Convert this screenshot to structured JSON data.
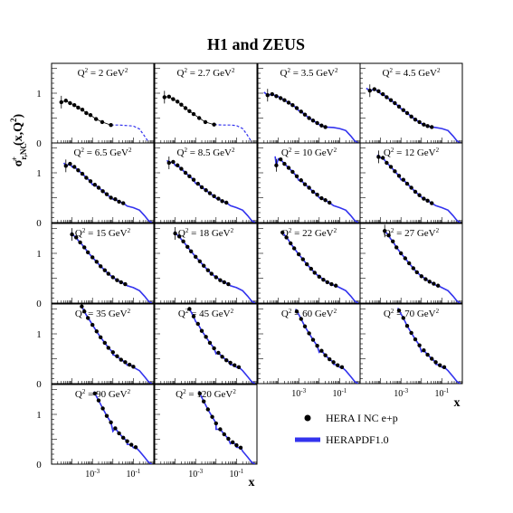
{
  "title": "H1 and ZEUS",
  "ylabel": "σ+r,NC(x,Q²)",
  "xlabel": "x",
  "legend": {
    "data_label": "HERA I NC e+p",
    "fit_label": "HERAPDF1.0",
    "fit_color": "#3333ee"
  },
  "chart_data": {
    "type": "scatter",
    "x_scale": "log",
    "xlim": [
      1e-05,
      1.0
    ],
    "ylim": [
      0,
      1.6
    ],
    "yticks": [
      0,
      1
    ],
    "xtick_labels": [
      "10-3",
      "10-1"
    ],
    "grid": false,
    "panels": [
      {
        "label": "Q² = 2 GeV²",
        "Q2": 2,
        "extrapolated_tail": true,
        "x": [
          3e-05,
          5e-05,
          8e-05,
          0.00013,
          0.0002,
          0.00032,
          0.0005,
          0.0008,
          0.0015,
          0.003,
          0.008
        ],
        "y": [
          0.82,
          0.85,
          0.8,
          0.76,
          0.71,
          0.67,
          0.6,
          0.56,
          0.48,
          0.42,
          0.36
        ],
        "fit_x": [
          0.008,
          0.02,
          0.05,
          0.1,
          0.2,
          0.35,
          0.55
        ],
        "fit_y": [
          0.36,
          0.36,
          0.35,
          0.34,
          0.28,
          0.14,
          0.02
        ]
      },
      {
        "label": "Q² = 2.7 GeV²",
        "Q2": 2.7,
        "extrapolated_tail": true,
        "x": [
          3e-05,
          5e-05,
          8e-05,
          0.00013,
          0.0002,
          0.00032,
          0.0005,
          0.0008,
          0.0015,
          0.003,
          0.008
        ],
        "y": [
          0.92,
          0.93,
          0.88,
          0.83,
          0.77,
          0.7,
          0.64,
          0.58,
          0.5,
          0.42,
          0.37
        ],
        "fit_x": [
          0.008,
          0.02,
          0.05,
          0.1,
          0.2,
          0.35,
          0.55
        ],
        "fit_y": [
          0.37,
          0.36,
          0.36,
          0.35,
          0.29,
          0.15,
          0.02
        ]
      },
      {
        "label": "Q² = 3.5 GeV²",
        "Q2": 3.5,
        "extrapolated_tail": false,
        "x": [
          3e-05,
          5e-05,
          8e-05,
          0.00013,
          0.0002,
          0.00032,
          0.0005,
          0.0008,
          0.0013,
          0.002,
          0.0032,
          0.005,
          0.008,
          0.013,
          0.02
        ],
        "y": [
          0.96,
          0.98,
          0.94,
          0.9,
          0.86,
          0.81,
          0.76,
          0.7,
          0.63,
          0.57,
          0.5,
          0.45,
          0.4,
          0.35,
          0.32
        ],
        "fit_x": [
          2e-05,
          0.0001,
          0.001,
          0.01,
          0.05,
          0.1,
          0.2,
          0.35,
          0.55,
          0.8
        ],
        "fit_y": [
          1.02,
          0.93,
          0.65,
          0.37,
          0.31,
          0.29,
          0.25,
          0.14,
          0.04,
          0.0
        ]
      },
      {
        "label": "Q² = 4.5 GeV²",
        "Q2": 4.5,
        "extrapolated_tail": false,
        "x": [
          3e-05,
          5e-05,
          8e-05,
          0.00013,
          0.0002,
          0.00032,
          0.0005,
          0.0008,
          0.0013,
          0.002,
          0.0032,
          0.005,
          0.008,
          0.013,
          0.02,
          0.032
        ],
        "y": [
          1.05,
          1.08,
          1.04,
          0.98,
          0.92,
          0.86,
          0.8,
          0.73,
          0.66,
          0.6,
          0.53,
          0.47,
          0.42,
          0.37,
          0.34,
          0.32
        ],
        "fit_x": [
          2e-05,
          0.0001,
          0.001,
          0.01,
          0.05,
          0.1,
          0.2,
          0.35,
          0.55,
          0.8
        ],
        "fit_y": [
          1.1,
          0.99,
          0.69,
          0.39,
          0.31,
          0.29,
          0.25,
          0.14,
          0.04,
          0.0
        ]
      },
      {
        "label": "Q² = 6.5 GeV²",
        "Q2": 6.5,
        "extrapolated_tail": false,
        "x": [
          5e-05,
          8e-05,
          0.00013,
          0.0002,
          0.00032,
          0.0005,
          0.0008,
          0.0013,
          0.002,
          0.0032,
          0.005,
          0.008,
          0.013,
          0.02,
          0.032
        ],
        "y": [
          1.14,
          1.18,
          1.12,
          1.05,
          0.98,
          0.9,
          0.83,
          0.76,
          0.7,
          0.63,
          0.57,
          0.5,
          0.47,
          0.42,
          0.39
        ],
        "fit_x": [
          4e-05,
          0.0001,
          0.001,
          0.01,
          0.05,
          0.1,
          0.2,
          0.35,
          0.55,
          0.8
        ],
        "fit_y": [
          1.2,
          1.12,
          0.76,
          0.47,
          0.33,
          0.3,
          0.25,
          0.14,
          0.04,
          0.0
        ]
      },
      {
        "label": "Q² = 8.5 GeV²",
        "Q2": 8.5,
        "extrapolated_tail": false,
        "x": [
          5e-05,
          8e-05,
          0.00013,
          0.0002,
          0.00032,
          0.0005,
          0.0008,
          0.0013,
          0.002,
          0.0032,
          0.005,
          0.008,
          0.013,
          0.02,
          0.032
        ],
        "y": [
          1.2,
          1.22,
          1.15,
          1.08,
          1.0,
          0.93,
          0.86,
          0.78,
          0.71,
          0.65,
          0.59,
          0.53,
          0.48,
          0.43,
          0.4
        ],
        "fit_x": [
          4e-05,
          0.0001,
          0.001,
          0.01,
          0.05,
          0.1,
          0.2,
          0.35,
          0.55,
          0.8
        ],
        "fit_y": [
          1.25,
          1.15,
          0.79,
          0.49,
          0.34,
          0.3,
          0.25,
          0.14,
          0.04,
          0.0
        ]
      },
      {
        "label": "Q² = 10 GeV²",
        "Q2": 10,
        "extrapolated_tail": false,
        "x": [
          8e-05,
          0.00013,
          0.0002,
          0.00032,
          0.0005,
          0.0008,
          0.0013,
          0.002,
          0.0032,
          0.005,
          0.008,
          0.013,
          0.02,
          0.032
        ],
        "y": [
          1.15,
          1.27,
          1.18,
          1.1,
          1.02,
          0.93,
          0.85,
          0.77,
          0.7,
          0.62,
          0.56,
          0.49,
          0.45,
          0.4
        ],
        "fit_x": [
          7e-05,
          0.0001,
          0.001,
          0.01,
          0.05,
          0.1,
          0.2,
          0.35,
          0.55,
          0.8
        ],
        "fit_y": [
          1.33,
          1.28,
          0.85,
          0.5,
          0.34,
          0.3,
          0.25,
          0.14,
          0.04,
          0.0
        ]
      },
      {
        "label": "Q² = 12 GeV²",
        "Q2": 12,
        "extrapolated_tail": false,
        "x": [
          8e-05,
          0.00013,
          0.0002,
          0.00032,
          0.0005,
          0.0008,
          0.0013,
          0.002,
          0.0032,
          0.005,
          0.008,
          0.013,
          0.02,
          0.032
        ],
        "y": [
          1.32,
          1.3,
          1.2,
          1.12,
          1.03,
          0.94,
          0.86,
          0.78,
          0.7,
          0.62,
          0.55,
          0.48,
          0.44,
          0.39
        ],
        "fit_x": [
          7e-05,
          0.0001,
          0.001,
          0.01,
          0.05,
          0.1,
          0.2,
          0.35,
          0.55,
          0.8
        ],
        "fit_y": [
          1.36,
          1.3,
          0.86,
          0.51,
          0.34,
          0.3,
          0.25,
          0.14,
          0.04,
          0.0
        ]
      },
      {
        "label": "Q² = 15 GeV²",
        "Q2": 15,
        "extrapolated_tail": false,
        "x": [
          0.0001,
          0.00016,
          0.00025,
          0.0004,
          0.0006,
          0.001,
          0.0016,
          0.0025,
          0.004,
          0.006,
          0.01,
          0.016,
          0.025,
          0.04
        ],
        "y": [
          1.38,
          1.32,
          1.22,
          1.12,
          1.02,
          0.92,
          0.83,
          0.74,
          0.66,
          0.59,
          0.52,
          0.46,
          0.42,
          0.38
        ],
        "fit_x": [
          9e-05,
          0.0002,
          0.001,
          0.01,
          0.05,
          0.1,
          0.2,
          0.35,
          0.55,
          0.8
        ],
        "fit_y": [
          1.42,
          1.26,
          0.92,
          0.52,
          0.35,
          0.31,
          0.25,
          0.14,
          0.04,
          0.0
        ]
      },
      {
        "label": "Q² = 18 GeV²",
        "Q2": 18,
        "extrapolated_tail": false,
        "x": [
          0.0001,
          0.00016,
          0.00025,
          0.0004,
          0.0006,
          0.001,
          0.0016,
          0.0025,
          0.004,
          0.006,
          0.01,
          0.016,
          0.025,
          0.04
        ],
        "y": [
          1.4,
          1.34,
          1.24,
          1.13,
          1.04,
          0.93,
          0.84,
          0.75,
          0.66,
          0.59,
          0.52,
          0.46,
          0.42,
          0.38
        ],
        "fit_x": [
          9e-05,
          0.0002,
          0.001,
          0.01,
          0.05,
          0.1,
          0.2,
          0.35,
          0.55,
          0.8
        ],
        "fit_y": [
          1.44,
          1.28,
          0.93,
          0.53,
          0.35,
          0.31,
          0.25,
          0.14,
          0.04,
          0.0
        ]
      },
      {
        "label": "Q² = 22 GeV²",
        "Q2": 22,
        "extrapolated_tail": false,
        "x": [
          0.00016,
          0.00025,
          0.0004,
          0.0006,
          0.001,
          0.0016,
          0.0025,
          0.004,
          0.006,
          0.01,
          0.016,
          0.025,
          0.04,
          0.065
        ],
        "y": [
          1.42,
          1.32,
          1.2,
          1.1,
          0.98,
          0.88,
          0.78,
          0.69,
          0.61,
          0.53,
          0.47,
          0.42,
          0.38,
          0.35
        ],
        "fit_x": [
          0.00015,
          0.0003,
          0.001,
          0.01,
          0.05,
          0.1,
          0.2,
          0.35,
          0.55,
          0.8
        ],
        "fit_y": [
          1.44,
          1.28,
          0.98,
          0.54,
          0.36,
          0.31,
          0.25,
          0.14,
          0.04,
          0.0
        ]
      },
      {
        "label": "Q² = 27 GeV²",
        "Q2": 27,
        "extrapolated_tail": false,
        "x": [
          0.00016,
          0.00025,
          0.0004,
          0.0006,
          0.001,
          0.0016,
          0.0025,
          0.004,
          0.006,
          0.01,
          0.016,
          0.025,
          0.04,
          0.065
        ],
        "y": [
          1.45,
          1.36,
          1.24,
          1.12,
          1.0,
          0.9,
          0.8,
          0.7,
          0.62,
          0.54,
          0.48,
          0.43,
          0.39,
          0.35
        ],
        "fit_x": [
          0.00015,
          0.0003,
          0.001,
          0.01,
          0.05,
          0.1,
          0.2,
          0.35,
          0.55,
          0.8
        ],
        "fit_y": [
          1.47,
          1.3,
          1.0,
          0.55,
          0.36,
          0.31,
          0.25,
          0.14,
          0.04,
          0.0
        ]
      },
      {
        "label": "Q² = 35 GeV²",
        "Q2": 35,
        "extrapolated_tail": false,
        "x": [
          0.0003,
          0.0004,
          0.0006,
          0.001,
          0.0016,
          0.0025,
          0.004,
          0.006,
          0.01,
          0.016,
          0.025,
          0.04,
          0.065,
          0.1
        ],
        "y": [
          1.55,
          1.45,
          1.32,
          1.18,
          1.05,
          0.93,
          0.82,
          0.72,
          0.63,
          0.55,
          0.48,
          0.43,
          0.38,
          0.34
        ],
        "fit_x": [
          0.00028,
          0.0006,
          0.001,
          0.01,
          0.05,
          0.1,
          0.2,
          0.35,
          0.55,
          0.8
        ],
        "fit_y": [
          1.52,
          1.33,
          1.18,
          0.58,
          0.37,
          0.33,
          0.26,
          0.14,
          0.04,
          0.0
        ]
      },
      {
        "label": "Q² = 45 GeV²",
        "Q2": 45,
        "extrapolated_tail": false,
        "x": [
          0.0005,
          0.0008,
          0.0013,
          0.002,
          0.0032,
          0.005,
          0.008,
          0.013,
          0.02,
          0.032,
          0.05,
          0.08,
          0.13
        ],
        "y": [
          1.5,
          1.35,
          1.2,
          1.06,
          0.94,
          0.82,
          0.71,
          0.62,
          0.54,
          0.47,
          0.42,
          0.37,
          0.33
        ],
        "fit_x": [
          0.00045,
          0.001,
          0.01,
          0.05,
          0.1,
          0.2,
          0.35,
          0.55,
          0.8
        ],
        "fit_y": [
          1.52,
          1.25,
          0.6,
          0.38,
          0.33,
          0.26,
          0.14,
          0.04,
          0.0
        ]
      },
      {
        "label": "Q² = 60 GeV²",
        "Q2": 60,
        "extrapolated_tail": false,
        "x": [
          0.0008,
          0.0013,
          0.002,
          0.0032,
          0.005,
          0.008,
          0.013,
          0.02,
          0.032,
          0.05,
          0.08,
          0.13
        ],
        "y": [
          1.45,
          1.3,
          1.15,
          1.01,
          0.88,
          0.76,
          0.66,
          0.57,
          0.49,
          0.43,
          0.37,
          0.33
        ],
        "fit_x": [
          0.0007,
          0.001,
          0.01,
          0.05,
          0.1,
          0.2,
          0.35,
          0.55,
          0.8
        ],
        "fit_y": [
          1.5,
          1.39,
          0.63,
          0.39,
          0.33,
          0.26,
          0.14,
          0.04,
          0.0
        ]
      },
      {
        "label": "Q² = 70 GeV²",
        "Q2": 70,
        "extrapolated_tail": false,
        "x": [
          0.0008,
          0.0013,
          0.002,
          0.0032,
          0.005,
          0.008,
          0.013,
          0.02,
          0.032,
          0.05,
          0.08,
          0.13
        ],
        "y": [
          1.47,
          1.32,
          1.16,
          1.02,
          0.89,
          0.77,
          0.67,
          0.58,
          0.5,
          0.43,
          0.37,
          0.33
        ],
        "fit_x": [
          0.0007,
          0.001,
          0.01,
          0.05,
          0.1,
          0.2,
          0.35,
          0.55,
          0.8
        ],
        "fit_y": [
          1.52,
          1.4,
          0.64,
          0.39,
          0.33,
          0.26,
          0.14,
          0.04,
          0.0
        ]
      },
      {
        "label": "Q² = 90 GeV²",
        "Q2": 90,
        "extrapolated_tail": false,
        "x": [
          0.0013,
          0.002,
          0.0032,
          0.005,
          0.008,
          0.013,
          0.02,
          0.032,
          0.05,
          0.08,
          0.13
        ],
        "y": [
          1.42,
          1.28,
          1.12,
          0.97,
          0.84,
          0.72,
          0.62,
          0.53,
          0.46,
          0.39,
          0.34
        ],
        "fit_x": [
          0.0012,
          0.002,
          0.01,
          0.05,
          0.1,
          0.2,
          0.35,
          0.55,
          0.8
        ],
        "fit_y": [
          1.46,
          1.28,
          0.66,
          0.4,
          0.33,
          0.26,
          0.14,
          0.04,
          0.0
        ]
      },
      {
        "label": "Q² = 120 GeV²",
        "Q2": 120,
        "extrapolated_tail": false,
        "x": [
          0.0016,
          0.0025,
          0.004,
          0.0065,
          0.01,
          0.016,
          0.025,
          0.04,
          0.065,
          0.1,
          0.16
        ],
        "y": [
          1.42,
          1.26,
          1.1,
          0.95,
          0.82,
          0.7,
          0.6,
          0.51,
          0.44,
          0.38,
          0.33
        ],
        "fit_x": [
          0.0015,
          0.0025,
          0.01,
          0.05,
          0.1,
          0.2,
          0.35,
          0.55,
          0.8
        ],
        "fit_y": [
          1.46,
          1.26,
          0.7,
          0.41,
          0.34,
          0.26,
          0.14,
          0.04,
          0.0
        ]
      }
    ]
  }
}
